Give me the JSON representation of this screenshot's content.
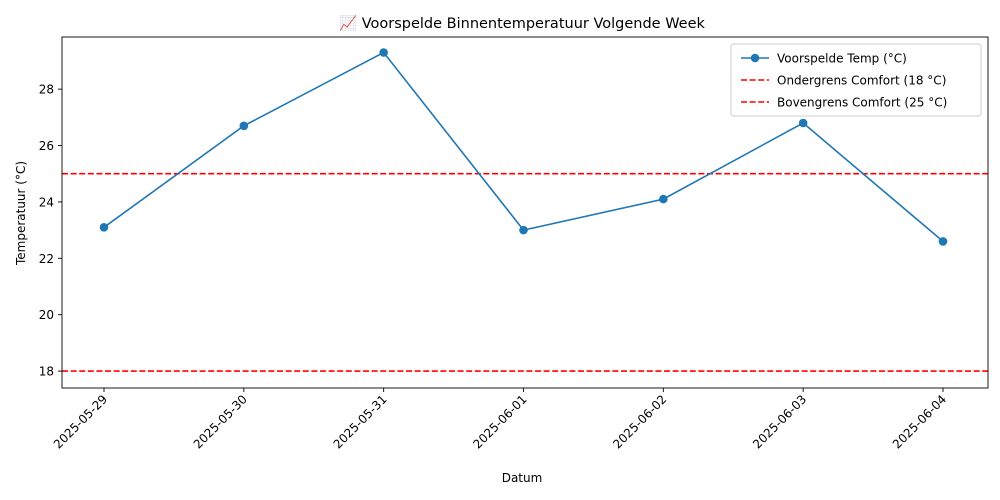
{
  "chart_data": {
    "type": "line",
    "title": "📈 Voorspelde Binnentemperatuur Volgende Week",
    "xlabel": "Datum",
    "ylabel": "Temperatuur (°C)",
    "x": [
      "2025-05-29",
      "2025-05-30",
      "2025-05-31",
      "2025-06-01",
      "2025-06-02",
      "2025-06-03",
      "2025-06-04"
    ],
    "ylim": [
      17.4,
      29.85
    ],
    "yticks": [
      18,
      20,
      22,
      24,
      26,
      28
    ],
    "grid": false,
    "legend_position": "top-right",
    "series": [
      {
        "name": "Voorspelde Temp (°C)",
        "values": [
          23.1,
          26.7,
          29.3,
          23.0,
          24.1,
          26.8,
          22.6
        ],
        "color": "#1f77b4",
        "marker": "circle"
      }
    ],
    "reference_lines": [
      {
        "name": "Ondergrens Comfort (18 °C)",
        "value": 18,
        "color": "#ff0000",
        "style": "dashed"
      },
      {
        "name": "Bovengrens Comfort (25 °C)",
        "value": 25,
        "color": "#ff0000",
        "style": "dashed"
      }
    ]
  }
}
